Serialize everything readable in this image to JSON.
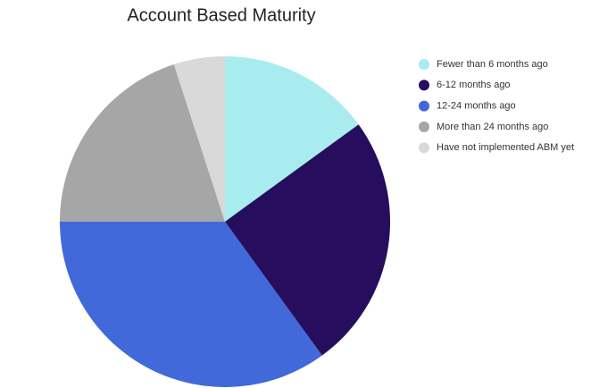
{
  "chart_data": {
    "type": "pie",
    "title": "Account Based Maturity",
    "categories": [
      "Fewer than 6 months ago",
      "6-12 months ago",
      "12-24 months ago",
      "More than 24 months ago",
      "Have not implemented ABM yet"
    ],
    "values": [
      15,
      25,
      35,
      20,
      5
    ],
    "colors": [
      "#a8ecef",
      "#260d5e",
      "#4169d9",
      "#a6a6a6",
      "#d9d9d9"
    ],
    "legend": "right"
  }
}
